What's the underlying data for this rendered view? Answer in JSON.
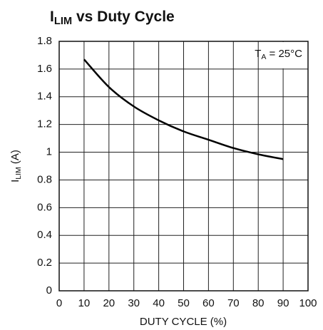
{
  "chart_data": {
    "type": "line",
    "title": {
      "main": "I",
      "sub": "LIM",
      "rest": " vs Duty Cycle"
    },
    "xlabel": "DUTY CYCLE (%)",
    "ylabel": {
      "main": "I",
      "sub": "LIM",
      "rest": " (A)"
    },
    "annotation": {
      "main": "T",
      "sub": "A",
      "rest": " = 25°C"
    },
    "x": [
      10,
      20,
      30,
      40,
      50,
      60,
      70,
      80,
      90
    ],
    "series": [
      {
        "color": "#000000",
        "values": [
          1.67,
          1.47,
          1.33,
          1.23,
          1.15,
          1.09,
          1.03,
          0.985,
          0.95
        ]
      }
    ],
    "xlim": [
      0,
      100
    ],
    "xticks": [
      0,
      10,
      20,
      30,
      40,
      50,
      60,
      70,
      80,
      90,
      100
    ],
    "ylim": [
      0,
      1.8
    ],
    "yticks": [
      0,
      0.2,
      0.4,
      0.6,
      0.8,
      1,
      1.2,
      1.4,
      1.6,
      1.8
    ],
    "grid": true
  }
}
